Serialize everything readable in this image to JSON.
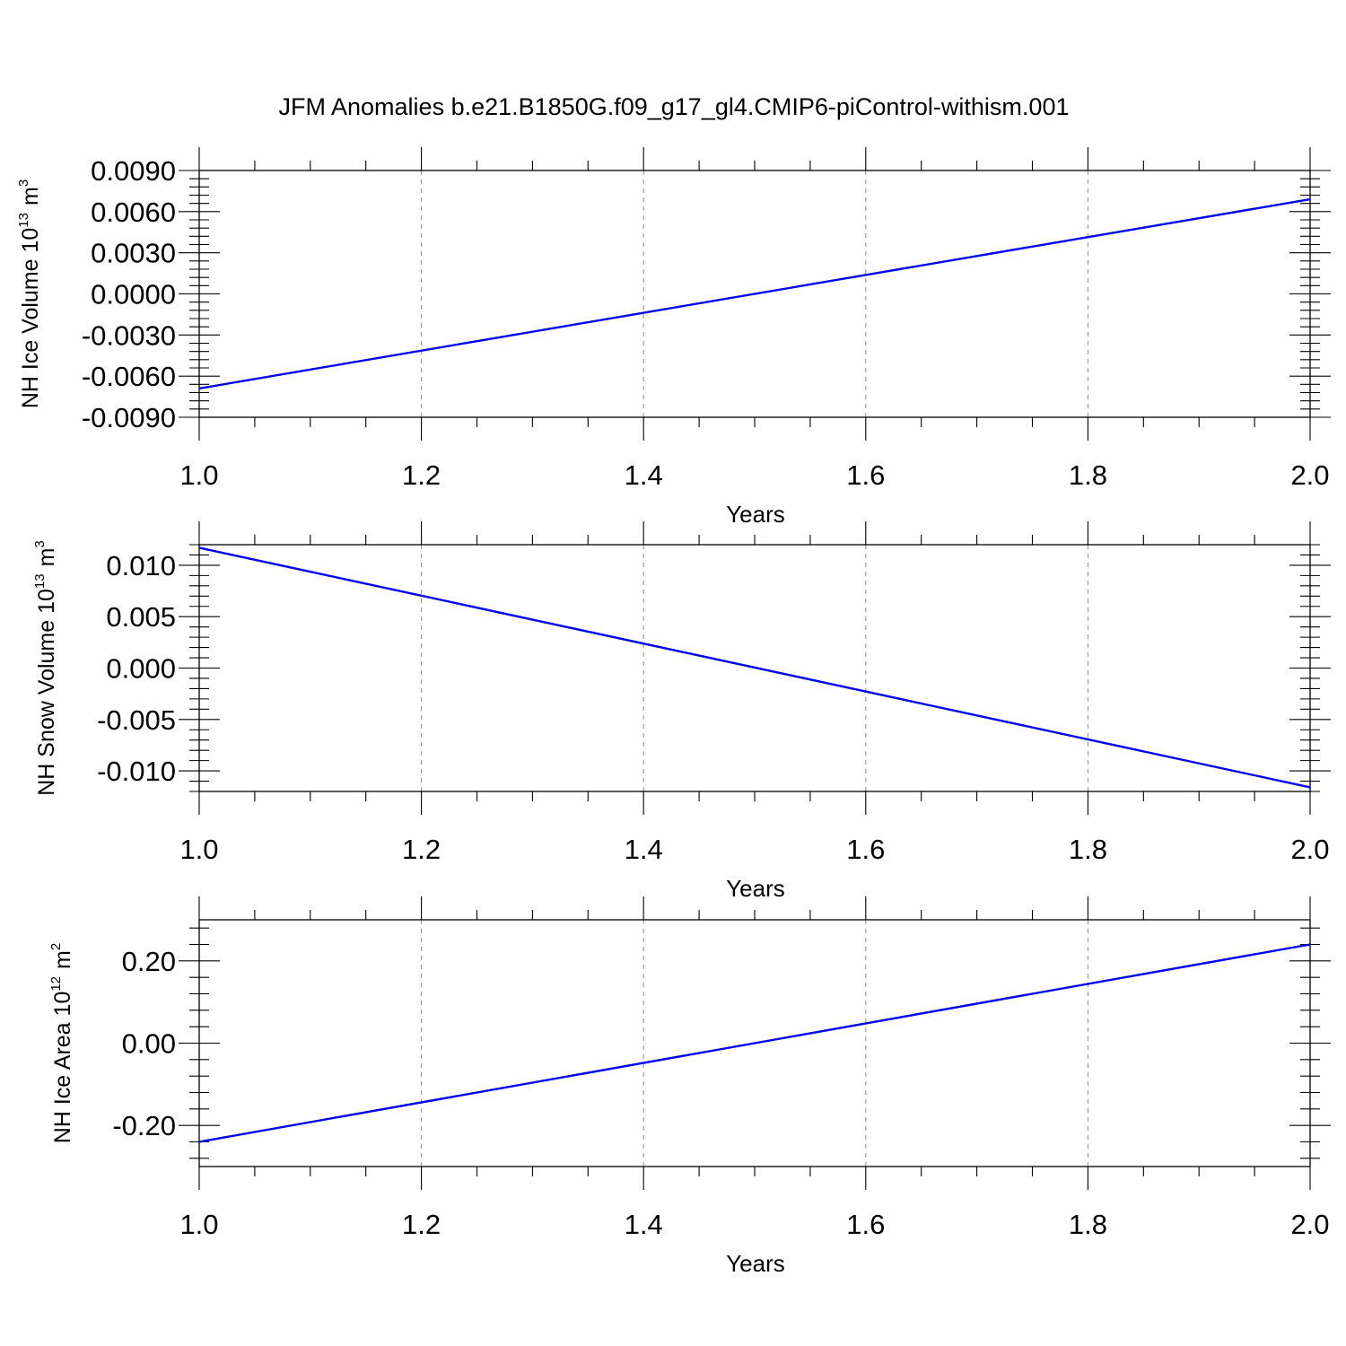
{
  "title": "JFM Anomalies b.e21.B1850G.f09_g17_gl4.CMIP6-piControl-withism.001",
  "colors": {
    "series": "#0000ee",
    "grid": "#8a8a8a",
    "axis": "#000000"
  },
  "chart_data": [
    {
      "type": "line",
      "xlabel": "Years",
      "ylabel": {
        "prefix": "NH Ice Volume 10",
        "exponent": "13",
        "unit": "m",
        "unit_exponent": "3"
      },
      "xlim": [
        1.0,
        2.0
      ],
      "ylim": [
        -0.009,
        0.009
      ],
      "xticks": [
        "1.0",
        "1.2",
        "1.4",
        "1.6",
        "1.8",
        "2.0"
      ],
      "yticks": [
        "-0.0090",
        "-0.0060",
        "-0.0030",
        "0.0000",
        "0.0030",
        "0.0060",
        "0.0090"
      ],
      "grid": "vertical dashed",
      "series": [
        {
          "x": [
            1.0,
            2.0
          ],
          "y": [
            -0.0069,
            0.0069
          ]
        }
      ]
    },
    {
      "type": "line",
      "xlabel": "Years",
      "ylabel": {
        "prefix": "NH Snow Volume 10",
        "exponent": "13",
        "unit": "m",
        "unit_exponent": "3"
      },
      "xlim": [
        1.0,
        2.0
      ],
      "ylim": [
        -0.012,
        0.012
      ],
      "xticks": [
        "1.0",
        "1.2",
        "1.4",
        "1.6",
        "1.8",
        "2.0"
      ],
      "yticks": [
        "-0.010",
        "-0.005",
        "0.000",
        "0.005",
        "0.010"
      ],
      "grid": "vertical dashed",
      "series": [
        {
          "x": [
            1.0,
            2.0
          ],
          "y": [
            0.0117,
            -0.0116
          ]
        }
      ]
    },
    {
      "type": "line",
      "xlabel": "Years",
      "ylabel": {
        "prefix": "NH Ice Area 10",
        "exponent": "12",
        "unit": "m",
        "unit_exponent": "2"
      },
      "xlim": [
        1.0,
        2.0
      ],
      "ylim": [
        -0.3,
        0.3
      ],
      "xticks": [
        "1.0",
        "1.2",
        "1.4",
        "1.6",
        "1.8",
        "2.0"
      ],
      "yticks": [
        "-0.20",
        "0.00",
        "0.20"
      ],
      "grid": "vertical dashed",
      "series": [
        {
          "x": [
            1.0,
            2.0
          ],
          "y": [
            -0.24,
            0.24
          ]
        }
      ]
    }
  ]
}
